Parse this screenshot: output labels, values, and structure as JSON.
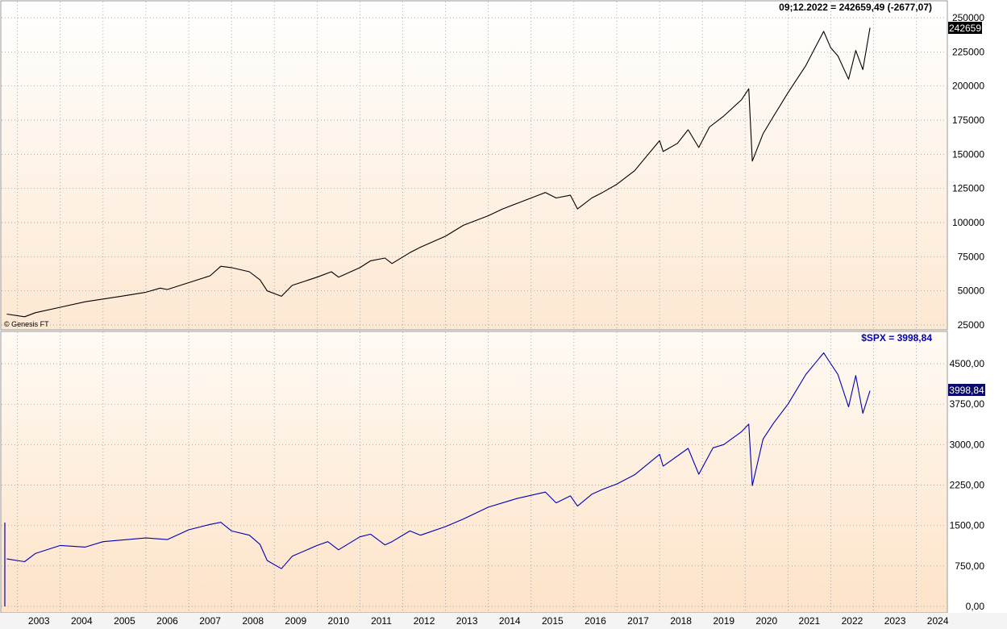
{
  "watermark": "© Genesis FT",
  "chart_data": [
    {
      "type": "line",
      "readout": "09;12.2022 = 242659,49 (-2677,07)",
      "last_value_label": "242659",
      "y_ticks": [
        "250000",
        "225000",
        "200000",
        "175000",
        "150000",
        "125000",
        "100000",
        "75000",
        "50000",
        "25000"
      ],
      "ylim": [
        25000,
        250000
      ],
      "grid": true,
      "series": [
        {
          "color": "#000000",
          "x": [
            "2002-10",
            "2003-03",
            "2003-06",
            "2004-01",
            "2004-08",
            "2005-01",
            "2005-06",
            "2006-01",
            "2006-05",
            "2006-07",
            "2007-01",
            "2007-07",
            "2007-10",
            "2008-01",
            "2008-06",
            "2008-09",
            "2008-11",
            "2009-03",
            "2009-06",
            "2010-01",
            "2010-05",
            "2010-07",
            "2011-01",
            "2011-04",
            "2011-08",
            "2011-10",
            "2012-03",
            "2012-06",
            "2013-01",
            "2013-06",
            "2014-01",
            "2014-05",
            "2014-10",
            "2015-03",
            "2015-05",
            "2015-08",
            "2015-12",
            "2016-02",
            "2016-06",
            "2016-09",
            "2017-01",
            "2017-06",
            "2018-01",
            "2018-02",
            "2018-06",
            "2018-09",
            "2018-12",
            "2019-03",
            "2019-07",
            "2019-12",
            "2020-02",
            "2020-03",
            "2020-06",
            "2020-09",
            "2021-01",
            "2021-06",
            "2021-11",
            "2022-01",
            "2022-03",
            "2022-06",
            "2022-08",
            "2022-10",
            "2022-12"
          ],
          "values": [
            33000,
            31000,
            34000,
            38000,
            42000,
            44000,
            46000,
            49000,
            52000,
            51000,
            56000,
            61000,
            68000,
            67000,
            64000,
            58000,
            50000,
            46000,
            54000,
            60000,
            64000,
            60000,
            67000,
            72000,
            74000,
            70000,
            78000,
            82000,
            90000,
            98000,
            105000,
            110000,
            115000,
            120000,
            122000,
            118000,
            120000,
            110000,
            118000,
            122000,
            128000,
            138000,
            160000,
            152000,
            158000,
            168000,
            155000,
            170000,
            178000,
            190000,
            198000,
            145000,
            165000,
            178000,
            195000,
            215000,
            240000,
            228000,
            222000,
            205000,
            226000,
            212000,
            242659
          ]
        }
      ]
    },
    {
      "type": "line",
      "readout": "$SPX = 3998,84",
      "last_value_label": "3998,84",
      "y_ticks": [
        "4500,00",
        "3750,00",
        "3000,00",
        "2250,00",
        "1500,00",
        "750,00",
        "0,00"
      ],
      "ylim": [
        0,
        4500
      ],
      "grid": true,
      "series": [
        {
          "color": "#0000b4",
          "x": [
            "2002-10",
            "2003-03",
            "2003-06",
            "2004-01",
            "2004-08",
            "2005-01",
            "2006-01",
            "2006-07",
            "2007-01",
            "2007-07",
            "2007-10",
            "2008-01",
            "2008-06",
            "2008-09",
            "2008-11",
            "2009-03",
            "2009-06",
            "2010-01",
            "2010-04",
            "2010-07",
            "2011-01",
            "2011-04",
            "2011-08",
            "2011-10",
            "2012-03",
            "2012-06",
            "2013-01",
            "2013-06",
            "2014-01",
            "2014-09",
            "2015-05",
            "2015-08",
            "2015-12",
            "2016-02",
            "2016-06",
            "2016-09",
            "2017-01",
            "2017-06",
            "2018-01",
            "2018-02",
            "2018-09",
            "2018-12",
            "2019-04",
            "2019-07",
            "2019-12",
            "2020-02",
            "2020-03",
            "2020-06",
            "2020-09",
            "2021-01",
            "2021-06",
            "2021-11",
            "2022-01",
            "2022-03",
            "2022-06",
            "2022-08",
            "2022-10",
            "2022-12"
          ],
          "values": [
            880,
            830,
            980,
            1130,
            1100,
            1200,
            1270,
            1240,
            1420,
            1520,
            1560,
            1400,
            1320,
            1150,
            850,
            700,
            930,
            1130,
            1200,
            1050,
            1290,
            1340,
            1140,
            1200,
            1400,
            1320,
            1480,
            1620,
            1840,
            2000,
            2120,
            1920,
            2050,
            1860,
            2080,
            2170,
            2270,
            2440,
            2820,
            2600,
            2930,
            2450,
            2940,
            3000,
            3240,
            3380,
            2240,
            3100,
            3400,
            3750,
            4300,
            4700,
            4500,
            4300,
            3700,
            4280,
            3580,
            3998.84
          ]
        }
      ]
    }
  ],
  "x_axis": {
    "ticks": [
      "2003",
      "2004",
      "2005",
      "2006",
      "2007",
      "2008",
      "2009",
      "2010",
      "2011",
      "2012",
      "2013",
      "2014",
      "2015",
      "2016",
      "2017",
      "2018",
      "2019",
      "2020",
      "2021",
      "2022",
      "2023",
      "2024"
    ],
    "range": [
      "2002-09",
      "2024-09"
    ]
  }
}
